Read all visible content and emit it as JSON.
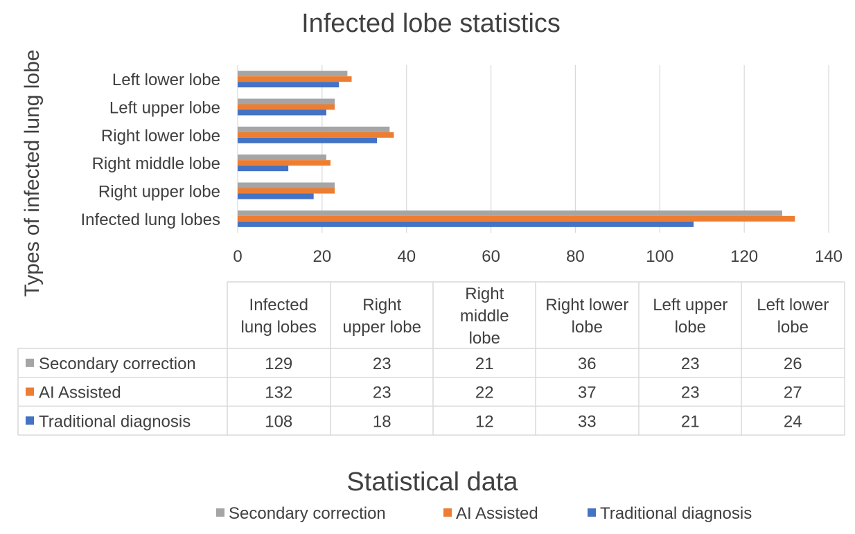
{
  "chart_data": {
    "type": "bar",
    "orientation": "horizontal",
    "title": "Infected lobe statistics",
    "xlabel": "Statistical data",
    "ylabel": "Types of infected lung lobe",
    "xlim": [
      0,
      140
    ],
    "x_ticks": [
      0,
      20,
      40,
      60,
      80,
      100,
      120,
      140
    ],
    "grid": true,
    "legend_position": "bottom",
    "data_table": true,
    "categories": [
      "Infected lung lobes",
      "Right upper lobe",
      "Right middle lobe",
      "Right lower lobe",
      "Left upper lobe",
      "Left lower lobe"
    ],
    "table_headers": [
      [
        "Infected",
        "lung lobes"
      ],
      [
        "Right",
        "upper lobe"
      ],
      [
        "Right",
        "middle",
        "lobe"
      ],
      [
        "Right lower",
        "lobe"
      ],
      [
        "Left upper",
        "lobe"
      ],
      [
        "Left lower",
        "lobe"
      ]
    ],
    "series": [
      {
        "name": "Secondary correction",
        "color": "#a5a5a5",
        "values": [
          129,
          23,
          21,
          36,
          23,
          26
        ]
      },
      {
        "name": "AI Assisted",
        "color": "#ed7d31",
        "values": [
          132,
          23,
          22,
          37,
          23,
          27
        ]
      },
      {
        "name": "Traditional diagnosis",
        "color": "#4472c4",
        "values": [
          108,
          18,
          12,
          33,
          21,
          24
        ]
      }
    ]
  }
}
